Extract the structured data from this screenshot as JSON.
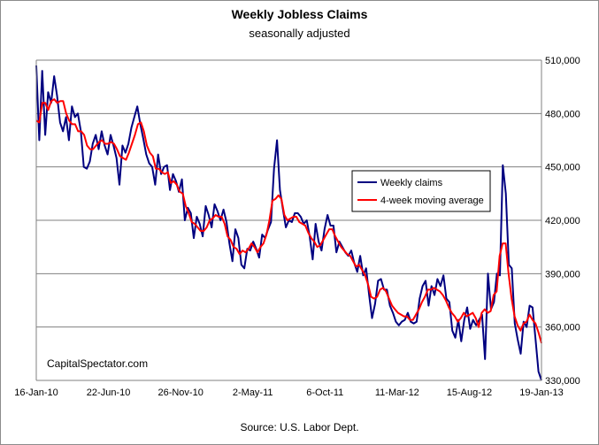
{
  "header": {
    "title": "Weekly Jobless Claims",
    "subtitle": "seasonally adjusted"
  },
  "footer": {
    "source": "Source: U.S. Labor Dept.",
    "watermark": "CapitalSpectator.com"
  },
  "colors": {
    "weekly": "#000080",
    "average": "#ff0000",
    "grid": "#808080"
  },
  "chart_data": {
    "type": "line",
    "title": "Weekly Jobless Claims",
    "subtitle": "seasonally adjusted",
    "xlabel": "",
    "ylabel": "",
    "ylim": [
      330000,
      510000
    ],
    "grid": true,
    "legend_placement": "center-right",
    "x_tick_labels": [
      "16-Jan-10",
      "22-Jun-10",
      "26-Nov-10",
      "2-May-11",
      "6-Oct-11",
      "11-Mar-12",
      "15-Aug-12",
      "19-Jan-13"
    ],
    "y_tick_labels": [
      "330,000",
      "360,000",
      "390,000",
      "420,000",
      "450,000",
      "480,000",
      "510,000"
    ],
    "y_ticks": [
      330000,
      360000,
      390000,
      420000,
      450000,
      480000,
      510000
    ],
    "series": [
      {
        "name": "Weekly claims",
        "values": [
          507000,
          465000,
          504000,
          468000,
          492000,
          486000,
          501000,
          490000,
          475000,
          470000,
          478000,
          465000,
          484000,
          478000,
          480000,
          470000,
          450000,
          449000,
          453000,
          463000,
          468000,
          460000,
          470000,
          462000,
          457000,
          468000,
          462000,
          455000,
          440000,
          462000,
          458000,
          463000,
          472000,
          478000,
          484000,
          474000,
          466000,
          457000,
          452000,
          450000,
          440000,
          457000,
          446000,
          450000,
          451000,
          437000,
          446000,
          442000,
          436000,
          443000,
          420000,
          427000,
          424000,
          410000,
          422000,
          418000,
          411000,
          428000,
          423000,
          416000,
          429000,
          425000,
          420000,
          426000,
          419000,
          407000,
          397000,
          415000,
          410000,
          395000,
          393000,
          404000,
          403000,
          408000,
          404000,
          399000,
          412000,
          410000,
          415000,
          419000,
          449000,
          465000,
          437000,
          426000,
          416000,
          420000,
          419000,
          424000,
          424000,
          422000,
          418000,
          420000,
          411000,
          398000,
          418000,
          408000,
          403000,
          415000,
          423000,
          417000,
          417000,
          402000,
          408000,
          405000,
          402000,
          400000,
          403000,
          396000,
          391000,
          400000,
          389000,
          393000,
          378000,
          365000,
          373000,
          386000,
          387000,
          381000,
          381000,
          372000,
          368000,
          363000,
          361000,
          363000,
          364000,
          368000,
          363000,
          362000,
          363000,
          376000,
          383000,
          386000,
          372000,
          383000,
          378000,
          387000,
          383000,
          389000,
          376000,
          374000,
          358000,
          354000,
          364000,
          352000,
          364000,
          371000,
          359000,
          364000,
          361000,
          364000,
          367000,
          342000,
          390000,
          370000,
          374000,
          390000,
          389000,
          451000,
          435000,
          395000,
          393000,
          362000,
          353000,
          345000,
          363000,
          360000,
          372000,
          371000,
          353000,
          335000,
          330000
        ]
      },
      {
        "name": "4-week moving average",
        "values": [
          476000,
          475000,
          486000,
          486000,
          482000,
          487000,
          488000,
          486000,
          487000,
          487000,
          480000,
          476000,
          474000,
          474000,
          470000,
          470000,
          468000,
          462000,
          460000,
          460000,
          462000,
          464000,
          465000,
          463000,
          463000,
          464000,
          463000,
          460000,
          456000,
          455000,
          454000,
          458000,
          463000,
          468000,
          474000,
          475000,
          470000,
          462000,
          458000,
          456000,
          449000,
          449000,
          447000,
          446000,
          447000,
          441000,
          442000,
          440000,
          436000,
          435000,
          428000,
          424000,
          419000,
          418000,
          416000,
          414000,
          414000,
          416000,
          420000,
          421000,
          423000,
          422000,
          422000,
          418000,
          411000,
          409000,
          405000,
          404000,
          401000,
          403000,
          402000,
          404000,
          407000,
          405000,
          402000,
          405000,
          407000,
          412000,
          420000,
          431000,
          432000,
          434000,
          432000,
          423000,
          420000,
          421000,
          422000,
          422000,
          419000,
          418000,
          417000,
          413000,
          410000,
          408000,
          405000,
          406000,
          409000,
          412000,
          415000,
          415000,
          411000,
          408000,
          405000,
          403000,
          401000,
          400000,
          397000,
          394000,
          395000,
          392000,
          389000,
          384000,
          377000,
          376000,
          377000,
          381000,
          382000,
          380000,
          376000,
          372000,
          370000,
          368000,
          367000,
          366000,
          366000,
          364000,
          364000,
          367000,
          370000,
          374000,
          377000,
          381000,
          381000,
          382000,
          381000,
          380000,
          378000,
          375000,
          371000,
          368000,
          366000,
          363000,
          365000,
          368000,
          366000,
          367000,
          368000,
          365000,
          360000,
          368000,
          370000,
          368000,
          369000,
          378000,
          380000,
          400000,
          407000,
          407000,
          390000,
          376000,
          366000,
          361000,
          358000,
          362000,
          363000,
          367000,
          364000,
          362000,
          357000,
          351000
        ]
      }
    ]
  }
}
